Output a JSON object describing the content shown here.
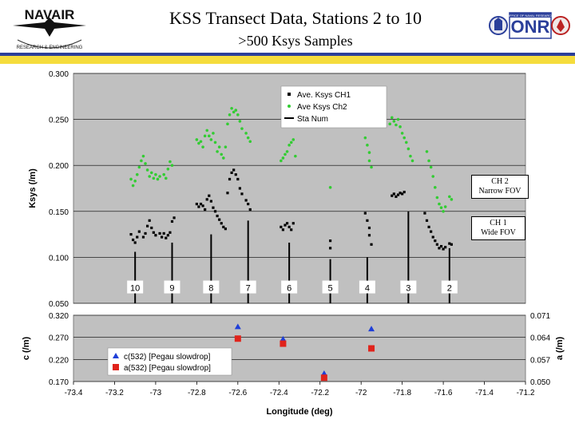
{
  "header": {
    "title": "KSS Transect Data, Stations 2 to 10",
    "subtitle": ">500 Ksys Samples",
    "logo_left_text": "NAVAIR",
    "logo_left_subtext": "RESEARCH & ENGINEERING",
    "logo_right_text": "ONR",
    "logo_right_subtext": "OFFICE OF NAVAL RESEARCH"
  },
  "colors": {
    "band_blue": "#2b3f9a",
    "band_yellow": "#f5dc3c",
    "plot_bg": "#c0c0c0",
    "ch1": "#000000",
    "ch2": "#33cc33",
    "c532": "#1f3fd8",
    "a532": "#e0231b"
  },
  "callouts": {
    "ch2": [
      "CH 2",
      "Narrow FOV"
    ],
    "ch1": [
      "CH 1",
      "Wide FOV"
    ]
  },
  "chart_data": [
    {
      "type": "scatter",
      "ylabel": "Ksys (/m)",
      "ylim": [
        0.05,
        0.3
      ],
      "yticks": [
        "0.050",
        "0.100",
        "0.150",
        "0.200",
        "0.250",
        "0.300"
      ],
      "xlim": [
        -73.4,
        -71.2
      ],
      "grid": true,
      "legend_position": "top-center",
      "legend": [
        "Ave. Ksys CH1",
        "Ave Ksys Ch2",
        "Sta Num"
      ],
      "stations": [
        {
          "label": "10",
          "x": -73.1,
          "top": 0.106
        },
        {
          "label": "9",
          "x": -72.92,
          "top": 0.116
        },
        {
          "label": "8",
          "x": -72.73,
          "top": 0.125
        },
        {
          "label": "7",
          "x": -72.55,
          "top": 0.14
        },
        {
          "label": "6",
          "x": -72.35,
          "top": 0.116
        },
        {
          "label": "5",
          "x": -72.15,
          "top": 0.098
        },
        {
          "label": "4",
          "x": -71.97,
          "top": 0.1
        },
        {
          "label": "3",
          "x": -71.77,
          "top": 0.15
        },
        {
          "label": "2",
          "x": -71.57,
          "top": 0.11
        }
      ],
      "series": [
        {
          "name": "Ave. Ksys CH1",
          "points": [
            [
              -73.12,
              0.125
            ],
            [
              -73.11,
              0.119
            ],
            [
              -73.1,
              0.116
            ],
            [
              -73.09,
              0.122
            ],
            [
              -73.08,
              0.128
            ],
            [
              -73.06,
              0.122
            ],
            [
              -73.05,
              0.126
            ],
            [
              -73.04,
              0.134
            ],
            [
              -73.03,
              0.14
            ],
            [
              -73.02,
              0.132
            ],
            [
              -73.01,
              0.127
            ],
            [
              -73.0,
              0.124
            ],
            [
              -72.98,
              0.126
            ],
            [
              -72.97,
              0.122
            ],
            [
              -72.96,
              0.126
            ],
            [
              -72.95,
              0.121
            ],
            [
              -72.94,
              0.124
            ],
            [
              -72.93,
              0.127
            ],
            [
              -72.92,
              0.139
            ],
            [
              -72.91,
              0.143
            ],
            [
              -72.8,
              0.158
            ],
            [
              -72.79,
              0.155
            ],
            [
              -72.78,
              0.158
            ],
            [
              -72.77,
              0.156
            ],
            [
              -72.76,
              0.152
            ],
            [
              -72.75,
              0.163
            ],
            [
              -72.74,
              0.167
            ],
            [
              -72.73,
              0.161
            ],
            [
              -72.72,
              0.154
            ],
            [
              -72.71,
              0.15
            ],
            [
              -72.7,
              0.145
            ],
            [
              -72.69,
              0.141
            ],
            [
              -72.68,
              0.137
            ],
            [
              -72.67,
              0.133
            ],
            [
              -72.66,
              0.131
            ],
            [
              -72.65,
              0.17
            ],
            [
              -72.64,
              0.185
            ],
            [
              -72.63,
              0.192
            ],
            [
              -72.62,
              0.195
            ],
            [
              -72.61,
              0.19
            ],
            [
              -72.6,
              0.185
            ],
            [
              -72.59,
              0.175
            ],
            [
              -72.58,
              0.169
            ],
            [
              -72.56,
              0.162
            ],
            [
              -72.55,
              0.158
            ],
            [
              -72.54,
              0.152
            ],
            [
              -72.39,
              0.133
            ],
            [
              -72.38,
              0.13
            ],
            [
              -72.37,
              0.135
            ],
            [
              -72.36,
              0.137
            ],
            [
              -72.35,
              0.133
            ],
            [
              -72.34,
              0.13
            ],
            [
              -72.33,
              0.137
            ],
            [
              -72.15,
              0.118
            ],
            [
              -72.15,
              0.11
            ],
            [
              -71.98,
              0.148
            ],
            [
              -71.97,
              0.14
            ],
            [
              -71.96,
              0.132
            ],
            [
              -71.96,
              0.124
            ],
            [
              -71.95,
              0.114
            ],
            [
              -71.85,
              0.167
            ],
            [
              -71.84,
              0.169
            ],
            [
              -71.83,
              0.166
            ],
            [
              -71.82,
              0.168
            ],
            [
              -71.81,
              0.17
            ],
            [
              -71.8,
              0.169
            ],
            [
              -71.79,
              0.171
            ],
            [
              -71.69,
              0.148
            ],
            [
              -71.68,
              0.14
            ],
            [
              -71.67,
              0.133
            ],
            [
              -71.66,
              0.128
            ],
            [
              -71.65,
              0.122
            ],
            [
              -71.64,
              0.118
            ],
            [
              -71.63,
              0.114
            ],
            [
              -71.62,
              0.11
            ],
            [
              -71.61,
              0.112
            ],
            [
              -71.6,
              0.109
            ],
            [
              -71.59,
              0.111
            ],
            [
              -71.57,
              0.115
            ],
            [
              -71.56,
              0.114
            ]
          ]
        },
        {
          "name": "Ave Ksys Ch2",
          "points": [
            [
              -73.12,
              0.185
            ],
            [
              -73.11,
              0.178
            ],
            [
              -73.1,
              0.183
            ],
            [
              -73.09,
              0.19
            ],
            [
              -73.08,
              0.198
            ],
            [
              -73.07,
              0.205
            ],
            [
              -73.06,
              0.21
            ],
            [
              -73.05,
              0.202
            ],
            [
              -73.04,
              0.195
            ],
            [
              -73.03,
              0.188
            ],
            [
              -73.02,
              0.192
            ],
            [
              -73.01,
              0.186
            ],
            [
              -73.0,
              0.19
            ],
            [
              -72.99,
              0.185
            ],
            [
              -72.98,
              0.188
            ],
            [
              -72.96,
              0.19
            ],
            [
              -72.95,
              0.186
            ],
            [
              -72.94,
              0.196
            ],
            [
              -72.93,
              0.204
            ],
            [
              -72.92,
              0.2
            ],
            [
              -72.8,
              0.228
            ],
            [
              -72.79,
              0.224
            ],
            [
              -72.78,
              0.226
            ],
            [
              -72.77,
              0.22
            ],
            [
              -72.76,
              0.232
            ],
            [
              -72.75,
              0.238
            ],
            [
              -72.74,
              0.232
            ],
            [
              -72.73,
              0.228
            ],
            [
              -72.72,
              0.235
            ],
            [
              -72.71,
              0.225
            ],
            [
              -72.7,
              0.215
            ],
            [
              -72.69,
              0.22
            ],
            [
              -72.68,
              0.212
            ],
            [
              -72.67,
              0.208
            ],
            [
              -72.66,
              0.22
            ],
            [
              -72.65,
              0.245
            ],
            [
              -72.64,
              0.255
            ],
            [
              -72.63,
              0.262
            ],
            [
              -72.62,
              0.258
            ],
            [
              -72.61,
              0.26
            ],
            [
              -72.6,
              0.255
            ],
            [
              -72.59,
              0.248
            ],
            [
              -72.58,
              0.24
            ],
            [
              -72.56,
              0.235
            ],
            [
              -72.55,
              0.23
            ],
            [
              -72.54,
              0.226
            ],
            [
              -72.39,
              0.205
            ],
            [
              -72.38,
              0.208
            ],
            [
              -72.37,
              0.212
            ],
            [
              -72.36,
              0.215
            ],
            [
              -72.35,
              0.222
            ],
            [
              -72.34,
              0.225
            ],
            [
              -72.33,
              0.228
            ],
            [
              -72.32,
              0.21
            ],
            [
              -72.15,
              0.176
            ],
            [
              -71.98,
              0.23
            ],
            [
              -71.97,
              0.222
            ],
            [
              -71.96,
              0.214
            ],
            [
              -71.96,
              0.205
            ],
            [
              -71.95,
              0.198
            ],
            [
              -71.86,
              0.245
            ],
            [
              -71.85,
              0.252
            ],
            [
              -71.84,
              0.248
            ],
            [
              -71.83,
              0.244
            ],
            [
              -71.82,
              0.25
            ],
            [
              -71.81,
              0.242
            ],
            [
              -71.8,
              0.235
            ],
            [
              -71.79,
              0.23
            ],
            [
              -71.78,
              0.225
            ],
            [
              -71.77,
              0.218
            ],
            [
              -71.76,
              0.21
            ],
            [
              -71.75,
              0.205
            ],
            [
              -71.68,
              0.215
            ],
            [
              -71.67,
              0.205
            ],
            [
              -71.66,
              0.198
            ],
            [
              -71.65,
              0.188
            ],
            [
              -71.64,
              0.176
            ],
            [
              -71.63,
              0.165
            ],
            [
              -71.62,
              0.158
            ],
            [
              -71.61,
              0.154
            ],
            [
              -71.6,
              0.15
            ],
            [
              -71.59,
              0.155
            ],
            [
              -71.57,
              0.166
            ],
            [
              -71.56,
              0.163
            ]
          ]
        }
      ]
    },
    {
      "type": "scatter",
      "xlabel": "Longitude (deg)",
      "ylabel": "c (/m)",
      "y2label": "a (/m)",
      "xlim": [
        -73.4,
        -71.2
      ],
      "xticks": [
        "-73.4",
        "-73.2",
        "-73",
        "-72.8",
        "-72.6",
        "-72.4",
        "-72.2",
        "-72",
        "-71.8",
        "-71.6",
        "-71.4",
        "-71.2"
      ],
      "ylim": [
        0.17,
        0.32
      ],
      "yticks": [
        "0.170",
        "0.220",
        "0.270",
        "0.320"
      ],
      "y2lim": [
        0.05,
        0.071
      ],
      "y2ticks": [
        "0.050",
        "0.057",
        "0.064",
        "0.071"
      ],
      "grid": true,
      "legend_position": "bottom-left",
      "series": [
        {
          "name": "c(532) [Pegau slowdrop]",
          "marker": "triangle",
          "axis": "left",
          "points": [
            [
              -72.6,
              0.294
            ],
            [
              -72.38,
              0.266
            ],
            [
              -72.18,
              0.188
            ],
            [
              -71.95,
              0.289
            ]
          ]
        },
        {
          "name": "a(532) [Pegau slowdrop]",
          "marker": "square",
          "axis": "right",
          "points": [
            [
              -72.6,
              0.0636
            ],
            [
              -72.38,
              0.062
            ],
            [
              -72.18,
              0.0512
            ],
            [
              -71.95,
              0.0605
            ]
          ]
        }
      ]
    }
  ]
}
